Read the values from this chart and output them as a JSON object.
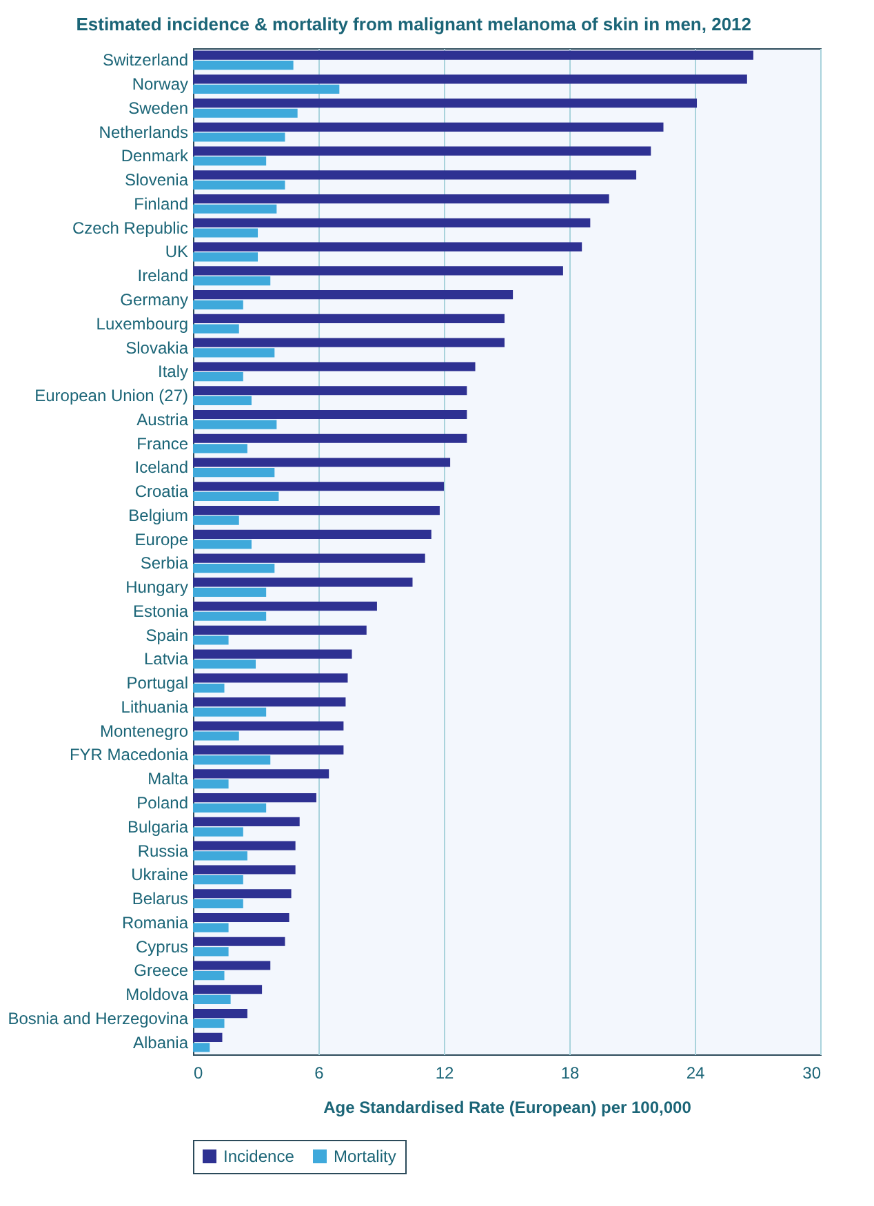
{
  "chart_data": {
    "type": "bar",
    "orientation": "horizontal",
    "title": "Estimated incidence & mortality from malignant melanoma of skin in men, 2012",
    "xlabel": "Age Standardised Rate (European) per 100,000",
    "categories": [
      "Switzerland",
      "Norway",
      "Sweden",
      "Netherlands",
      "Denmark",
      "Slovenia",
      "Finland",
      "Czech Republic",
      "UK",
      "Ireland",
      "Germany",
      "Luxembourg",
      "Slovakia",
      "Italy",
      "European Union (27)",
      "Austria",
      "France",
      "Iceland",
      "Croatia",
      "Belgium",
      "Europe",
      "Serbia",
      "Hungary",
      "Estonia",
      "Spain",
      "Latvia",
      "Portugal",
      "Lithuania",
      "Montenegro",
      "FYR Macedonia",
      "Malta",
      "Poland",
      "Bulgaria",
      "Russia",
      "Ukraine",
      "Belarus",
      "Romania",
      "Cyprus",
      "Greece",
      "Moldova",
      "Bosnia and Herzegovina",
      "Albania"
    ],
    "series": [
      {
        "name": "Incidence",
        "color": "#2e3192",
        "values": [
          26.8,
          26.5,
          24.1,
          22.5,
          21.9,
          21.2,
          19.9,
          19.0,
          18.6,
          17.7,
          15.3,
          14.9,
          14.9,
          13.5,
          13.1,
          13.1,
          13.1,
          12.3,
          12.0,
          11.8,
          11.4,
          11.1,
          10.5,
          8.8,
          8.3,
          7.6,
          7.4,
          7.3,
          7.2,
          7.2,
          6.5,
          5.9,
          5.1,
          4.9,
          4.9,
          4.7,
          4.6,
          4.4,
          3.7,
          3.3,
          2.6,
          1.4
        ]
      },
      {
        "name": "Mortality",
        "color": "#3fa9db",
        "values": [
          4.8,
          7.0,
          5.0,
          4.4,
          3.5,
          4.4,
          4.0,
          3.1,
          3.1,
          3.7,
          2.4,
          2.2,
          3.9,
          2.4,
          2.8,
          4.0,
          2.6,
          3.9,
          4.1,
          2.2,
          2.8,
          3.9,
          3.5,
          3.5,
          1.7,
          3.0,
          1.5,
          3.5,
          2.2,
          3.7,
          1.7,
          3.5,
          2.4,
          2.6,
          2.4,
          2.4,
          1.7,
          1.7,
          1.5,
          1.8,
          1.5,
          0.8
        ]
      }
    ],
    "xlim": [
      0,
      30
    ],
    "xticks": [
      0,
      6,
      12,
      18,
      24,
      30
    ],
    "grid": "x",
    "legend": "bottom"
  }
}
